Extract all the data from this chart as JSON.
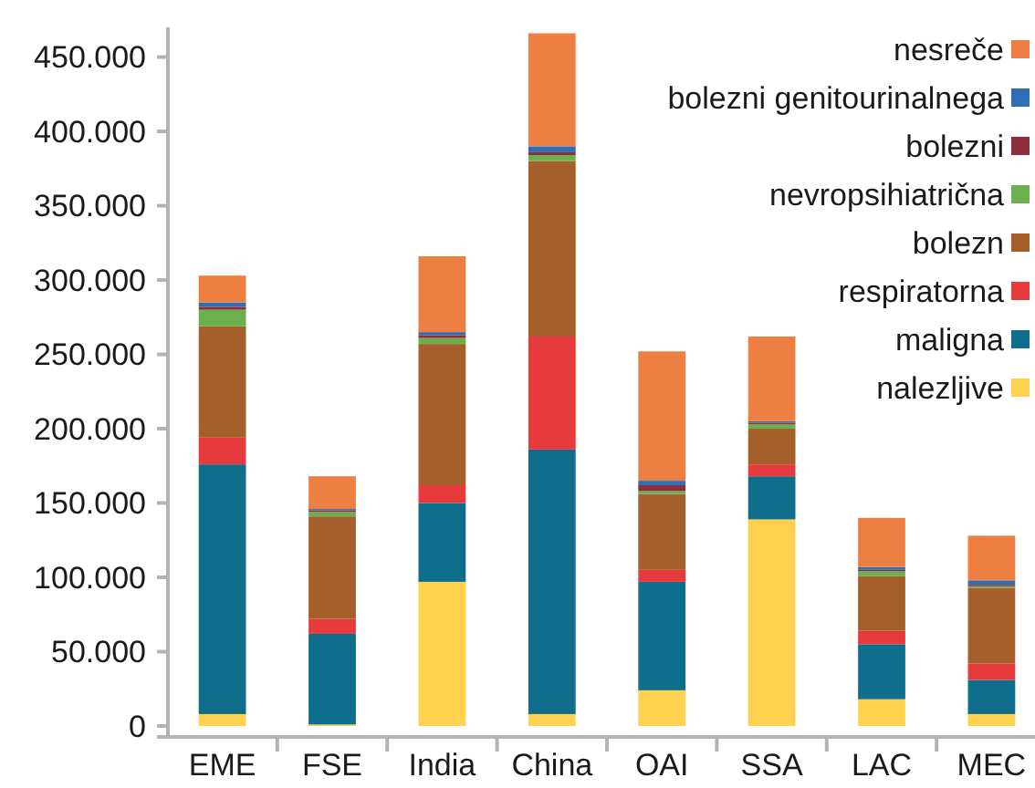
{
  "chart_data": {
    "type": "bar",
    "stacked": true,
    "legend": "top right",
    "categories": [
      "EME",
      "FSE",
      "India",
      "China",
      "OAI",
      "SSA",
      "LAC",
      "MEC"
    ],
    "ylim": [
      0,
      470000
    ],
    "yticks": [
      {
        "value": 0,
        "label": "0"
      },
      {
        "value": 50000,
        "label": "50.000"
      },
      {
        "value": 100000,
        "label": "100.000"
      },
      {
        "value": 150000,
        "label": "150.000"
      },
      {
        "value": 200000,
        "label": "200.000"
      },
      {
        "value": 250000,
        "label": "250.000"
      },
      {
        "value": 300000,
        "label": "300.000"
      },
      {
        "value": 350000,
        "label": "350.000"
      },
      {
        "value": 400000,
        "label": "400.000"
      },
      {
        "value": 450000,
        "label": "450.000"
      }
    ],
    "series": [
      {
        "name": "nalezljive",
        "color": "#fed24f",
        "values": [
          8000,
          1000,
          97000,
          8000,
          24000,
          139000,
          18000,
          8000
        ]
      },
      {
        "name": "maligna",
        "color": "#0e6e8c",
        "values": [
          168000,
          61000,
          53000,
          178000,
          73000,
          29000,
          37000,
          23000
        ]
      },
      {
        "name": "respiratorna",
        "color": "#e63a3c",
        "values": [
          18000,
          10000,
          12000,
          76000,
          8000,
          8000,
          9000,
          11000
        ]
      },
      {
        "name": "bolezn",
        "color": "#a55f2a",
        "values": [
          75000,
          69000,
          95000,
          118000,
          51000,
          24000,
          37000,
          51000
        ]
      },
      {
        "name": "nevropsihiatrična",
        "color": "#6ab04c",
        "values": [
          11000,
          3000,
          4000,
          4000,
          2000,
          3000,
          3000,
          1000
        ]
      },
      {
        "name": "bolezni",
        "color": "#8b2f3a",
        "values": [
          2000,
          1000,
          2000,
          2000,
          4000,
          1000,
          1000,
          1000
        ]
      },
      {
        "name": "bolezni genitourinalnega",
        "color": "#2f6eb5",
        "values": [
          3000,
          1000,
          2000,
          4000,
          3000,
          1000,
          2000,
          3000
        ]
      },
      {
        "name": "nesreče",
        "color": "#ed7f43",
        "values": [
          18000,
          22000,
          51000,
          76000,
          87000,
          57000,
          33000,
          30000
        ]
      }
    ]
  }
}
